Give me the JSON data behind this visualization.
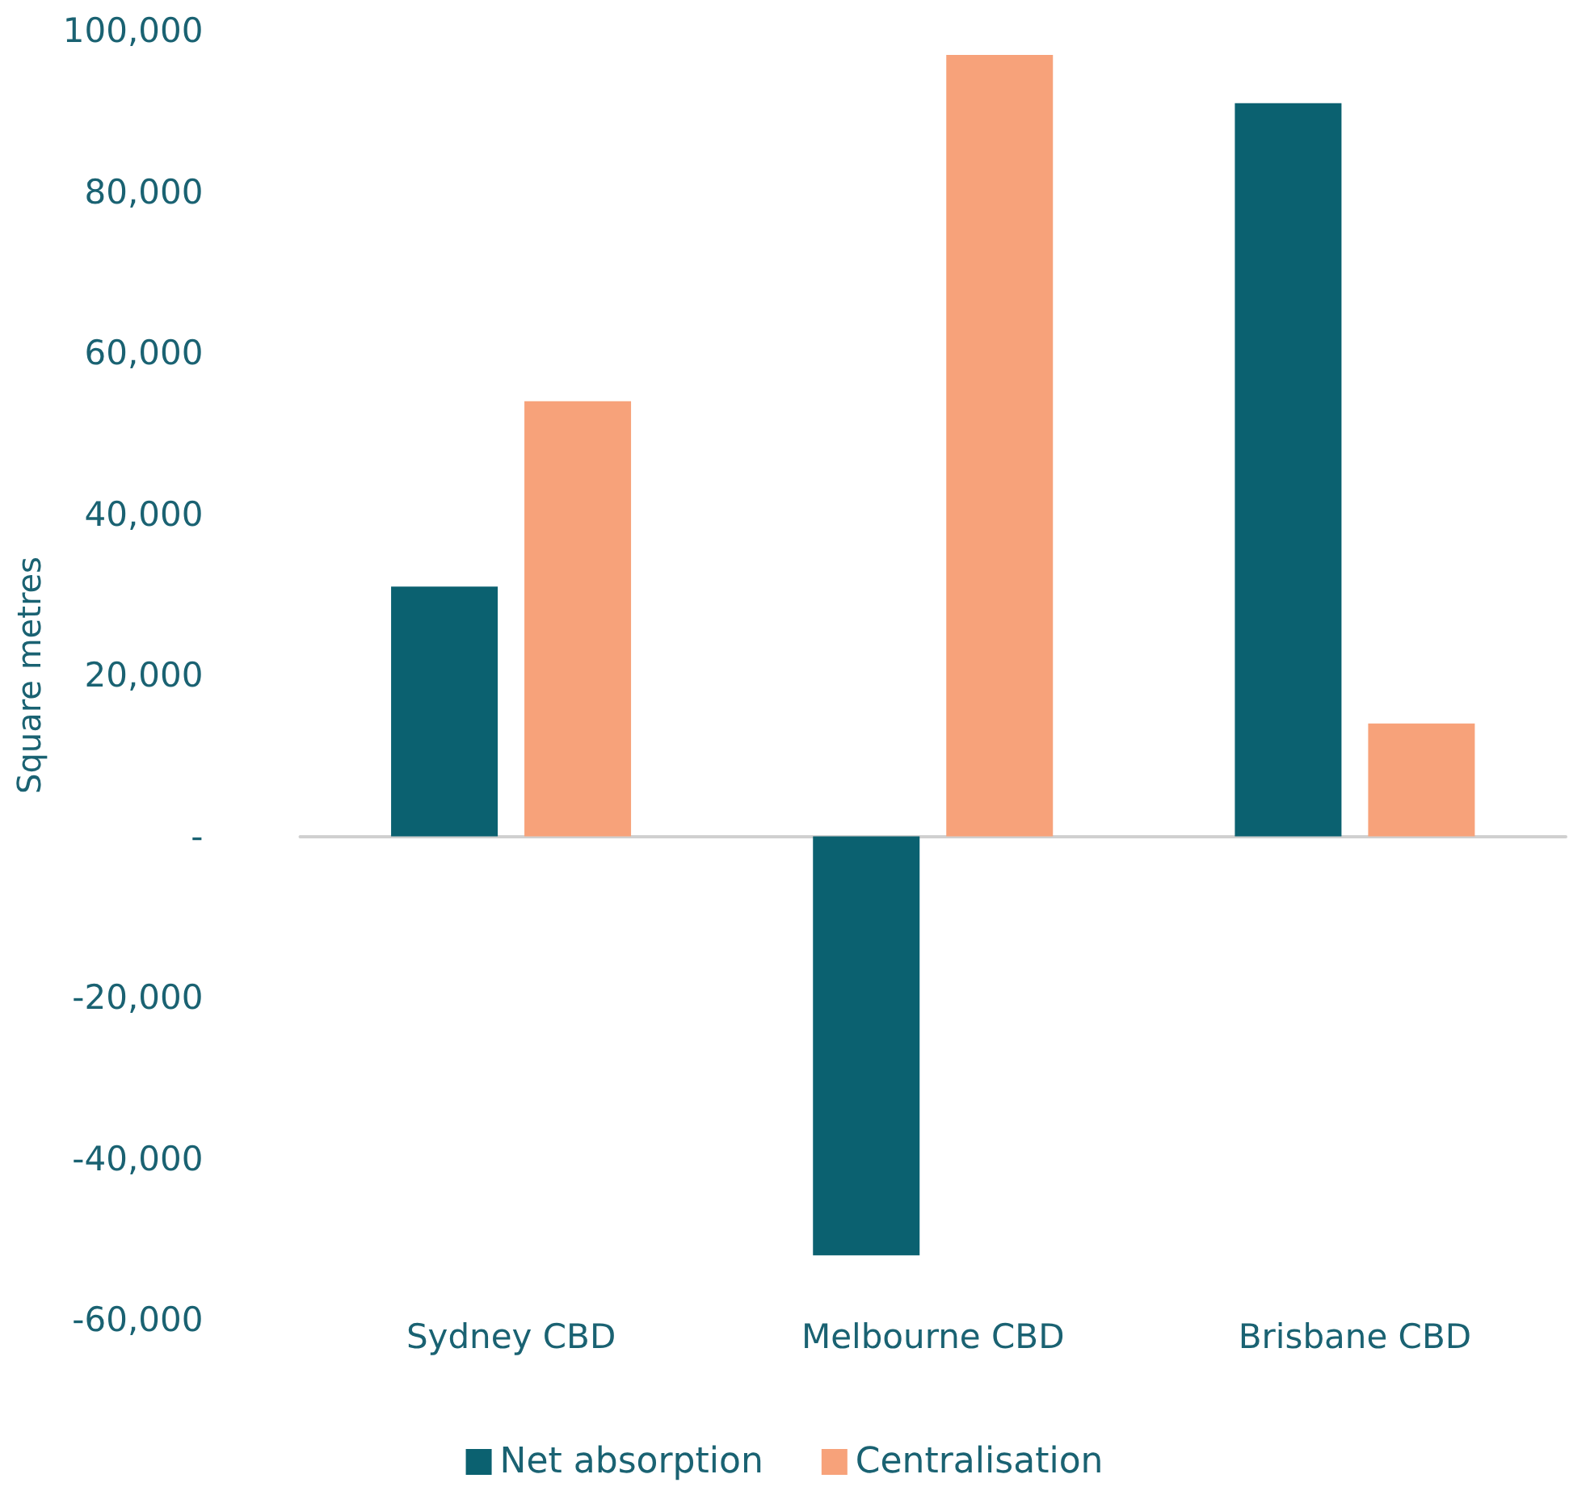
{
  "chart_data": {
    "type": "bar",
    "ylabel": "Square metres",
    "categories": [
      "Sydney CBD",
      "Melbourne CBD",
      "Brisbane CBD"
    ],
    "series": [
      {
        "name": "Net absorption",
        "color": "#0b6170",
        "values": [
          31000,
          -52000,
          91000
        ]
      },
      {
        "name": "Centralisation",
        "color": "#f7a27a",
        "values": [
          54000,
          97000,
          14000
        ]
      }
    ],
    "ylim": [
      -60000,
      100000
    ],
    "yticks": [
      {
        "value": -60000,
        "label": "-60,000"
      },
      {
        "value": -40000,
        "label": "-40,000"
      },
      {
        "value": -20000,
        "label": "-20,000"
      },
      {
        "value": 0,
        "label": "-"
      },
      {
        "value": 20000,
        "label": "20,000"
      },
      {
        "value": 40000,
        "label": "40,000"
      },
      {
        "value": 60000,
        "label": "60,000"
      },
      {
        "value": 80000,
        "label": "80,000"
      },
      {
        "value": 100000,
        "label": "100,000"
      }
    ],
    "legend": "bottom"
  }
}
